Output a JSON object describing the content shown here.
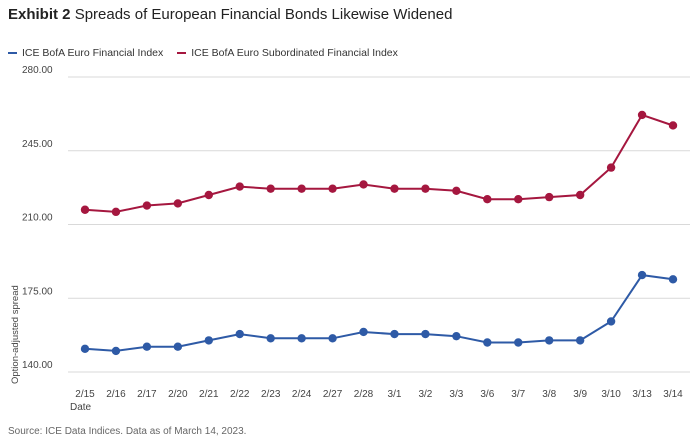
{
  "title": {
    "exhibit": "Exhibit 2",
    "text": "Spreads of European Financial Bonds Likewise Widened"
  },
  "source": "Source: ICE Data Indices. Data as of March 14, 2023.",
  "colors": {
    "series1": "#2e5aa6",
    "series2": "#a5173f",
    "grid": "#d9d9d9",
    "axis": "#555555"
  },
  "chart_data": {
    "type": "line",
    "xlabel": "Date",
    "ylabel": "Option-adjusted spread",
    "ylim": [
      140,
      280
    ],
    "yticks": [
      "140.00",
      "175.00",
      "210.00",
      "245.00",
      "280.00"
    ],
    "ytick_values": [
      140,
      175,
      210,
      245,
      280
    ],
    "grid": true,
    "legend_position": "top-left",
    "categories": [
      "2/15",
      "2/16",
      "2/17",
      "2/20",
      "2/21",
      "2/22",
      "2/23",
      "2/24",
      "2/27",
      "2/28",
      "3/1",
      "3/2",
      "3/3",
      "3/6",
      "3/7",
      "3/8",
      "3/9",
      "3/10",
      "3/13",
      "3/14"
    ],
    "series": [
      {
        "name": "ICE BofA Euro Financial Index",
        "values": [
          151,
          150,
          152,
          152,
          155,
          158,
          156,
          156,
          156,
          159,
          158,
          158,
          157,
          154,
          154,
          155,
          155,
          164,
          186,
          184
        ]
      },
      {
        "name": "ICE BofA Euro Subordinated Financial Index",
        "values": [
          217,
          216,
          219,
          220,
          224,
          228,
          227,
          227,
          227,
          229,
          227,
          227,
          226,
          222,
          222,
          223,
          224,
          237,
          262,
          257
        ]
      }
    ]
  }
}
